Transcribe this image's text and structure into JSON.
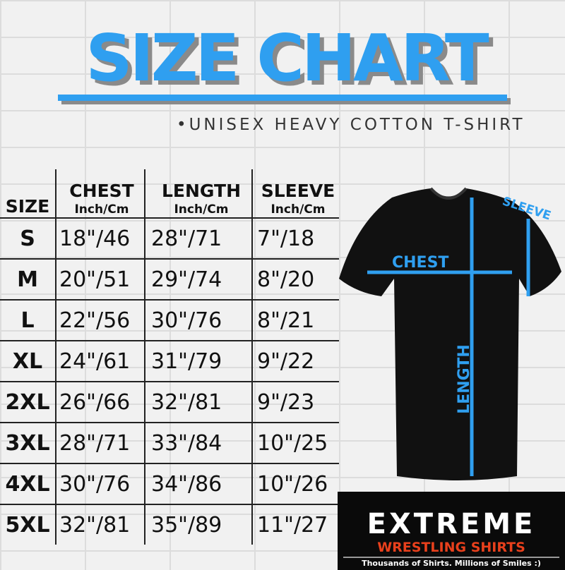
{
  "title": "SIZE CHART",
  "subtitle": "•UNISEX HEAVY COTTON T-SHIRT",
  "table": {
    "headers": {
      "size": "SIZE",
      "chest": "CHEST",
      "length": "LENGTH",
      "sleeve": "SLEEVE",
      "unit": "Inch/Cm"
    },
    "rows": [
      {
        "size": "S",
        "chest": "18\"/46",
        "length": "28\"/71",
        "sleeve": "7\"/18"
      },
      {
        "size": "M",
        "chest": "20\"/51",
        "length": "29\"/74",
        "sleeve": "8\"/20"
      },
      {
        "size": "L",
        "chest": "22\"/56",
        "length": "30\"/76",
        "sleeve": "8\"/21"
      },
      {
        "size": "XL",
        "chest": "24\"/61",
        "length": "31\"/79",
        "sleeve": "9\"/22"
      },
      {
        "size": "2XL",
        "chest": "26\"/66",
        "length": "32\"/81",
        "sleeve": "9\"/23"
      },
      {
        "size": "3XL",
        "chest": "28\"/71",
        "length": "33\"/84",
        "sleeve": "10\"/25"
      },
      {
        "size": "4XL",
        "chest": "30\"/76",
        "length": "34\"/86",
        "sleeve": "10\"/26"
      },
      {
        "size": "5XL",
        "chest": "32\"/81",
        "length": "35\"/89",
        "sleeve": "11\"/27"
      }
    ]
  },
  "diagram": {
    "chest": "CHEST",
    "length": "LENGTH",
    "sleeve": "SLEEVE"
  },
  "logo": {
    "line1": "EXTREME",
    "line2": "WRESTLING SHIRTS",
    "tagline": "Thousands of Shirts. Millions of Smiles :)"
  },
  "colors": {
    "accent": "#2f9ff0",
    "logo_red": "#e8401c",
    "shirt": "#111111"
  }
}
